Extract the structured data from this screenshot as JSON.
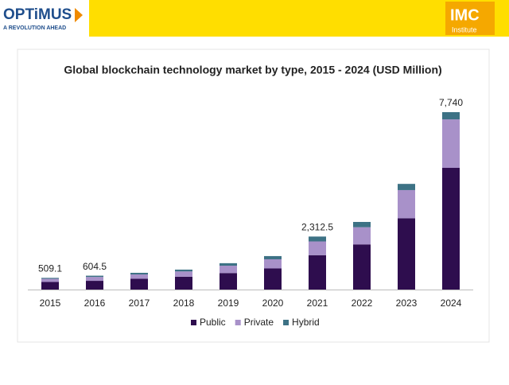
{
  "header": {
    "brand": "OPTiMUS",
    "tagline": "A REVOLUTION AHEAD",
    "partner": "IMC",
    "partner_sub": "Institute"
  },
  "chart_data": {
    "type": "stacked_bar",
    "title": "Global blockchain technology market by type, 2015 - 2024 (USD Million)",
    "categories": [
      "2015",
      "2016",
      "2017",
      "2018",
      "2019",
      "2020",
      "2021",
      "2022",
      "2023",
      "2024"
    ],
    "series": [
      {
        "name": "Public",
        "color": "#2e0d4e",
        "values": [
          330,
          380,
          470,
          560,
          720,
          920,
          1500,
          1970,
          3110,
          5310
        ]
      },
      {
        "name": "Private",
        "color": "#a891c9",
        "values": [
          140,
          170,
          190,
          230,
          320,
          400,
          600,
          750,
          1230,
          2115
        ]
      },
      {
        "name": "Hybrid",
        "color": "#3d7285",
        "values": [
          39.1,
          54.5,
          70,
          80,
          110,
          140,
          212.5,
          230,
          270,
          315
        ]
      }
    ],
    "totals": [
      509.1,
      604.5,
      null,
      null,
      null,
      null,
      2312.5,
      null,
      null,
      7740
    ],
    "value_labels": [
      "509.1",
      "604.5",
      null,
      null,
      null,
      null,
      "2,312.5",
      null,
      null,
      "7,740"
    ],
    "legend": "bottom"
  }
}
